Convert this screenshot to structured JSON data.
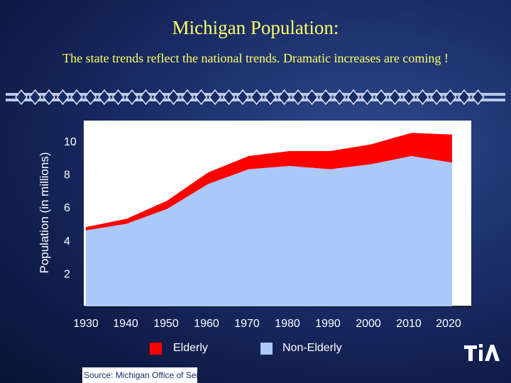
{
  "slide": {
    "title": "Michigan Population:",
    "subtitle": "The state trends reflect the national trends.  Dramatic increases are coming !",
    "source": "Source: Michigan Office of Services to the Aging",
    "logo_text": "TIA"
  },
  "colors": {
    "title": "#ffff66",
    "elderly": "#ff0000",
    "non_elderly": "#aac8f8",
    "text": "#ffffff"
  },
  "chart_data": {
    "type": "area",
    "title": "",
    "xlabel": "",
    "ylabel": "Population (in millions)",
    "x": [
      "1930",
      "1940",
      "1950",
      "1960",
      "1970",
      "1980",
      "1990",
      "2000",
      "2010",
      "2020"
    ],
    "ylim": [
      0,
      10.5
    ],
    "yticks": [
      2,
      4,
      6,
      8,
      10
    ],
    "stacked": true,
    "series": [
      {
        "name": "Non-Elderly",
        "color": "#aac8f8",
        "values": [
          4.6,
          5.0,
          5.9,
          7.4,
          8.3,
          8.5,
          8.3,
          8.6,
          9.1,
          8.7
        ]
      },
      {
        "name": "Elderly",
        "color": "#ff0000",
        "values": [
          0.2,
          0.3,
          0.5,
          0.7,
          0.8,
          0.9,
          1.1,
          1.2,
          1.4,
          1.7
        ]
      }
    ],
    "legend": [
      {
        "label": "Elderly",
        "color": "#ff0000"
      },
      {
        "label": "Non-Elderly",
        "color": "#aac8f8"
      }
    ],
    "legend_position": "bottom"
  }
}
